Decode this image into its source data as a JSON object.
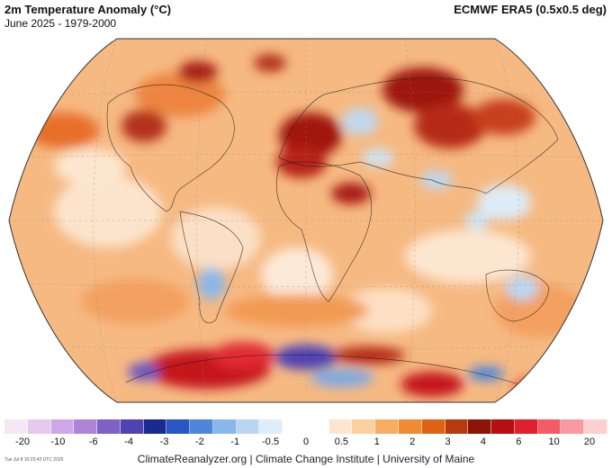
{
  "header": {
    "title": "2m Temperature Anomaly (°C)",
    "subtitle": "June 2025 - 1979-2000",
    "source": "ECMWF ERA5 (0.5x0.5 deg)"
  },
  "colorbar": {
    "colors": [
      "#f6e7f4",
      "#e5c9ee",
      "#cfa6e6",
      "#ae84d9",
      "#7f60c5",
      "#4f43b3",
      "#1a2a91",
      "#2856c4",
      "#4d86db",
      "#8ab7ea",
      "#b8d6f2",
      "#ddedf9",
      "#ffffff",
      "#ffffff",
      "#fde6cf",
      "#fbcf9e",
      "#f8ad61",
      "#f08a33",
      "#de6315",
      "#b53a0c",
      "#8b1607",
      "#b50f14",
      "#e0202a",
      "#f35c66",
      "#f99aa0",
      "#fcd0d0"
    ],
    "tick_labels": [
      "-20",
      "-10",
      "-6",
      "-4",
      "-3",
      "-2",
      "-1",
      "-0.5",
      "0",
      "0.5",
      "1",
      "2",
      "3",
      "4",
      "6",
      "10",
      "20"
    ]
  },
  "footer": {
    "timestamp": "Tue Jul 8 10:23:42 UTC 2025",
    "credits": "ClimateReanalyzer.org | Climate Change Institute | University of Maine"
  },
  "map": {
    "projection": "robinson",
    "base_color": "#f7c08e",
    "ocean_pattern": "mottled orange with pale white/blue patches in subtropics",
    "hot_regions": [
      "Europe",
      "Central Asia",
      "Eastern Canada",
      "Antarctica (West)",
      "North Pacific"
    ],
    "cold_regions": [
      "Antarctica (East coast)",
      "South America (south)",
      "Eastern Australia",
      "Northern India"
    ]
  }
}
